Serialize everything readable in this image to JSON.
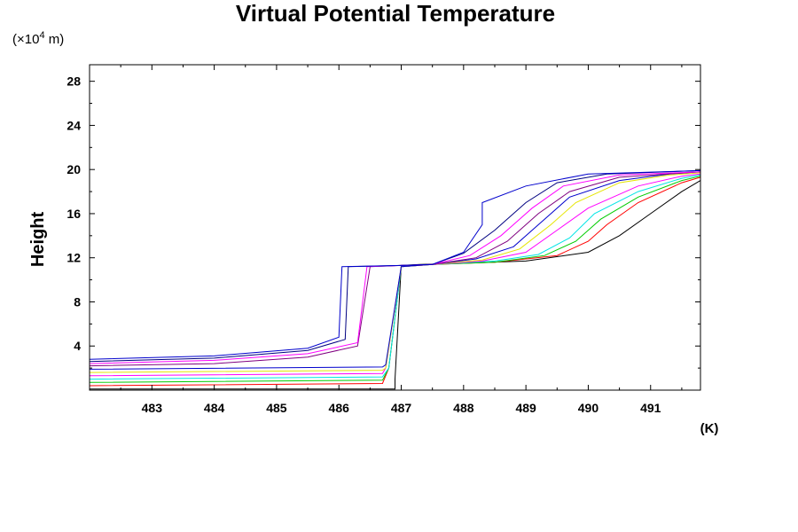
{
  "chart_data": {
    "type": "line",
    "title": "Virtual Potential Temperature",
    "xlabel": "(K)",
    "ylabel": "Height",
    "yunit_prefix": "(×10",
    "yunit_exp": "4",
    "yunit_suffix": " m)",
    "xlim": [
      482.0,
      491.8
    ],
    "ylim": [
      0,
      29.5
    ],
    "xticks": [
      483,
      484,
      485,
      486,
      487,
      488,
      489,
      490,
      491
    ],
    "yticks": [
      4,
      8,
      12,
      16,
      20,
      24,
      28
    ],
    "xtick_labels": [
      "483",
      "484",
      "485",
      "486",
      "487",
      "488",
      "489",
      "490",
      "491"
    ],
    "ytick_labels": [
      "4",
      "8",
      "12",
      "16",
      "20",
      "24",
      "28"
    ],
    "grid": false,
    "series_colors": [
      "#000000",
      "#ff0000",
      "#00cc00",
      "#00e5e5",
      "#ff00ff",
      "#e5e500",
      "#0000cc",
      "#800080",
      "#000080"
    ],
    "series": [
      {
        "color": "#000000",
        "x": [
          482.0,
          486.9,
          486.9,
          487.0,
          487.3,
          488.0,
          489.0,
          490.0,
          490.5,
          491.0,
          491.5,
          491.8
        ],
        "y": [
          0.1,
          0.1,
          1.0,
          11.3,
          11.4,
          11.5,
          11.7,
          12.5,
          14.0,
          16.0,
          18.0,
          19.0
        ]
      },
      {
        "color": "#ff0000",
        "x": [
          482.0,
          486.7,
          486.8,
          487.0,
          487.5,
          488.5,
          489.5,
          490.0,
          490.3,
          490.8,
          491.5,
          491.8
        ],
        "y": [
          0.4,
          0.6,
          2.0,
          11.2,
          11.4,
          11.6,
          12.2,
          13.5,
          15.0,
          17.0,
          18.8,
          19.3
        ]
      },
      {
        "color": "#00cc00",
        "x": [
          482.0,
          486.7,
          486.8,
          487.0,
          487.5,
          488.5,
          489.3,
          489.8,
          490.2,
          490.8,
          491.5,
          491.8
        ],
        "y": [
          0.7,
          0.9,
          2.0,
          11.2,
          11.4,
          11.6,
          12.2,
          13.5,
          15.5,
          17.5,
          19.0,
          19.4
        ]
      },
      {
        "color": "#00e5e5",
        "x": [
          482.0,
          486.7,
          486.8,
          487.0,
          487.5,
          488.5,
          489.2,
          489.7,
          490.1,
          490.8,
          491.5,
          491.8
        ],
        "y": [
          1.0,
          1.2,
          2.0,
          11.2,
          11.4,
          11.7,
          12.3,
          13.8,
          16.0,
          18.0,
          19.2,
          19.5
        ]
      },
      {
        "color": "#ff00ff",
        "x": [
          482.0,
          486.7,
          486.75,
          487.0,
          487.5,
          488.3,
          489.0,
          489.5,
          490.0,
          490.8,
          491.5,
          491.8
        ],
        "y": [
          1.3,
          1.5,
          2.0,
          11.2,
          11.4,
          11.7,
          12.5,
          14.5,
          16.5,
          18.5,
          19.4,
          19.6
        ]
      },
      {
        "color": "#e5e500",
        "x": [
          482.0,
          486.7,
          486.75,
          487.0,
          487.5,
          488.3,
          488.9,
          489.4,
          489.8,
          490.5,
          491.3,
          491.8
        ],
        "y": [
          1.6,
          1.8,
          2.0,
          11.2,
          11.4,
          11.8,
          12.8,
          15.0,
          17.0,
          18.8,
          19.5,
          19.7
        ]
      },
      {
        "color": "#0000cc",
        "x": [
          482.0,
          486.7,
          486.75,
          487.0,
          487.5,
          488.2,
          488.8,
          489.3,
          489.7,
          490.5,
          491.3,
          491.8
        ],
        "y": [
          1.9,
          2.1,
          2.3,
          11.2,
          11.4,
          11.9,
          13.0,
          15.5,
          17.5,
          19.0,
          19.6,
          19.8
        ]
      },
      {
        "color": "#800080",
        "x": [
          482.0,
          484.0,
          485.5,
          486.3,
          486.5,
          487.0,
          487.5,
          488.2,
          488.7,
          489.2,
          489.7,
          490.5,
          491.8
        ],
        "y": [
          2.2,
          2.4,
          3.0,
          4.0,
          11.2,
          11.3,
          11.4,
          12.0,
          13.5,
          16.0,
          18.0,
          19.3,
          19.8
        ]
      },
      {
        "color": "#ff00ff",
        "x": [
          482.0,
          484.0,
          485.5,
          486.3,
          486.45,
          487.0,
          487.5,
          488.1,
          488.6,
          489.1,
          489.6,
          490.5,
          491.8
        ],
        "y": [
          2.4,
          2.7,
          3.3,
          4.3,
          11.2,
          11.3,
          11.4,
          12.2,
          14.0,
          16.5,
          18.5,
          19.5,
          19.8
        ]
      },
      {
        "color": "#000080",
        "x": [
          482.0,
          484.0,
          485.5,
          486.1,
          486.15,
          487.0,
          487.5,
          488.0,
          488.5,
          489.0,
          489.5,
          490.3,
          491.8
        ],
        "y": [
          2.6,
          2.9,
          3.6,
          4.6,
          11.2,
          11.3,
          11.4,
          12.4,
          14.5,
          17.0,
          18.8,
          19.6,
          19.9
        ]
      },
      {
        "color": "#0000cc",
        "x": [
          482.0,
          484.0,
          485.5,
          486.0,
          486.05,
          487.0,
          487.5,
          488.0,
          488.3,
          488.3,
          489.0,
          490.0,
          491.8
        ],
        "y": [
          2.8,
          3.1,
          3.8,
          4.8,
          11.2,
          11.3,
          11.4,
          12.5,
          15.0,
          17.0,
          18.5,
          19.6,
          19.9
        ]
      }
    ]
  }
}
